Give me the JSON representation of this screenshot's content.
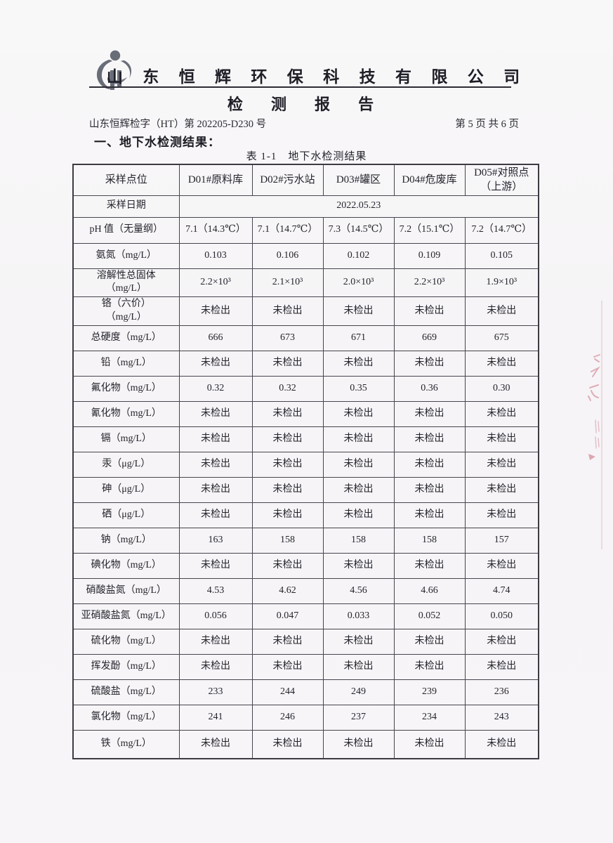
{
  "header": {
    "company_name": "山 东 恒 辉 环 保 科 技 有 限 公 司",
    "report_title": "检 测 报 告",
    "report_number": "山东恒辉检字（HT）第 202205-D230 号",
    "page_indicator": "第 5 页 共 6 页",
    "logo_icon": "company-logo"
  },
  "body_text": {
    "section_heading": "一、地下水检测结果：",
    "table_caption": "表 1-1　地下水检测结果"
  },
  "table": {
    "columns": [
      "采样点位",
      "D01#原料库",
      "D02#污水站",
      "D03#罐区",
      "D04#危废库",
      "D05#对照点\n（上游）"
    ],
    "date_label": "采样日期",
    "date_value": "2022.05.23",
    "rows": [
      {
        "label": "pH 值（无量纲）",
        "values": [
          "7.1（14.3℃）",
          "7.1（14.7℃）",
          "7.3（14.5℃）",
          "7.2（15.1℃）",
          "7.2（14.7℃）"
        ]
      },
      {
        "label": "氨氮（mg/L）",
        "values": [
          "0.103",
          "0.106",
          "0.102",
          "0.109",
          "0.105"
        ]
      },
      {
        "label": "溶解性总固体\n（mg/L）",
        "values": [
          "2.2×10³",
          "2.1×10³",
          "2.0×10³",
          "2.2×10³",
          "1.9×10³"
        ]
      },
      {
        "label": "铬（六价）\n（mg/L）",
        "values": [
          "未检出",
          "未检出",
          "未检出",
          "未检出",
          "未检出"
        ]
      },
      {
        "label": "总硬度（mg/L）",
        "values": [
          "666",
          "673",
          "671",
          "669",
          "675"
        ]
      },
      {
        "label": "铅（mg/L）",
        "values": [
          "未检出",
          "未检出",
          "未检出",
          "未检出",
          "未检出"
        ]
      },
      {
        "label": "氟化物（mg/L）",
        "values": [
          "0.32",
          "0.32",
          "0.35",
          "0.36",
          "0.30"
        ]
      },
      {
        "label": "氰化物（mg/L）",
        "values": [
          "未检出",
          "未检出",
          "未检出",
          "未检出",
          "未检出"
        ]
      },
      {
        "label": "镉（mg/L）",
        "values": [
          "未检出",
          "未检出",
          "未检出",
          "未检出",
          "未检出"
        ]
      },
      {
        "label": "汞（μg/L）",
        "values": [
          "未检出",
          "未检出",
          "未检出",
          "未检出",
          "未检出"
        ]
      },
      {
        "label": "砷（μg/L）",
        "values": [
          "未检出",
          "未检出",
          "未检出",
          "未检出",
          "未检出"
        ]
      },
      {
        "label": "硒（μg/L）",
        "values": [
          "未检出",
          "未检出",
          "未检出",
          "未检出",
          "未检出"
        ]
      },
      {
        "label": "钠（mg/L）",
        "values": [
          "163",
          "158",
          "158",
          "158",
          "157"
        ]
      },
      {
        "label": "碘化物（mg/L）",
        "values": [
          "未检出",
          "未检出",
          "未检出",
          "未检出",
          "未检出"
        ]
      },
      {
        "label": "硝酸盐氮（mg/L）",
        "values": [
          "4.53",
          "4.62",
          "4.56",
          "4.66",
          "4.74"
        ]
      },
      {
        "label": "亚硝酸盐氮（mg/L）",
        "values": [
          "0.056",
          "0.047",
          "0.033",
          "0.052",
          "0.050"
        ]
      },
      {
        "label": "硫化物（mg/L）",
        "values": [
          "未检出",
          "未检出",
          "未检出",
          "未检出",
          "未检出"
        ]
      },
      {
        "label": "挥发酚（mg/L）",
        "values": [
          "未检出",
          "未检出",
          "未检出",
          "未检出",
          "未检出"
        ]
      },
      {
        "label": "硫酸盐（mg/L）",
        "values": [
          "233",
          "244",
          "249",
          "239",
          "236"
        ]
      },
      {
        "label": "氯化物（mg/L）",
        "values": [
          "241",
          "246",
          "237",
          "234",
          "243"
        ]
      },
      {
        "label": "铁（mg/L）",
        "values": [
          "未检出",
          "未检出",
          "未检出",
          "未检出",
          "未检出"
        ]
      }
    ]
  },
  "colors": {
    "paper": "#f7f5f7",
    "ink": "#24242c",
    "table_border": "#46454e",
    "logo_gray": "#686d78",
    "red_ink": "#cc7486"
  }
}
